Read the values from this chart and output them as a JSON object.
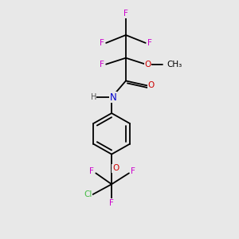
{
  "background_color": "#e8e8e8",
  "figsize": [
    3.0,
    3.0
  ],
  "dpi": 100,
  "bond_lw": 1.3,
  "font_size": 7.5,
  "atom_colors": {
    "F": "#cc00cc",
    "O": "#cc0000",
    "N": "#0000cc",
    "Cl": "#44bb44",
    "H": "#555555",
    "C": "#000000"
  }
}
